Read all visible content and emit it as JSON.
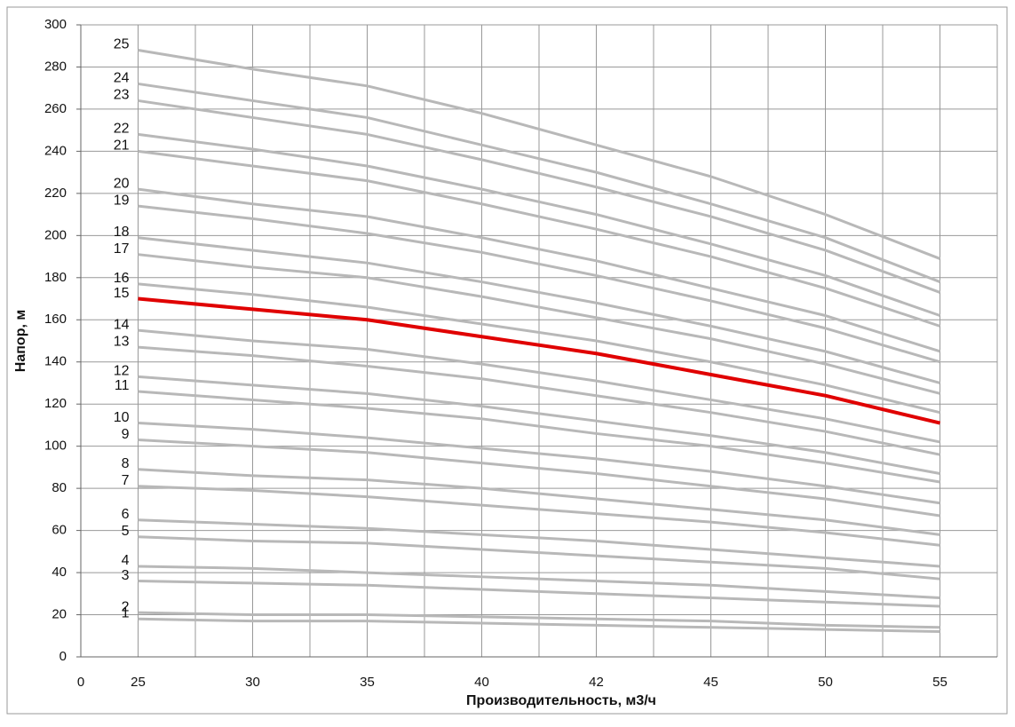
{
  "chart_data": {
    "type": "line",
    "x_label": "Производительность, м3/ч",
    "y_label": "Напор, м",
    "categories": [
      "0",
      "25",
      "30",
      "35",
      "40",
      "42",
      "45",
      "50",
      "55"
    ],
    "ylim": [
      0,
      300
    ],
    "yticks": [
      0,
      20,
      40,
      60,
      80,
      100,
      120,
      140,
      160,
      180,
      200,
      220,
      240,
      260,
      280,
      300
    ],
    "grid": true,
    "series": [
      {
        "name": "1",
        "color": "#b8b8b8",
        "values": [
          null,
          18,
          17,
          17,
          16,
          15,
          14,
          13,
          12
        ]
      },
      {
        "name": "2",
        "color": "#b8b8b8",
        "values": [
          null,
          21,
          20,
          20,
          19,
          18,
          17,
          15,
          14
        ]
      },
      {
        "name": "3",
        "color": "#b8b8b8",
        "values": [
          null,
          36,
          35,
          34,
          32,
          30,
          28,
          26,
          24
        ]
      },
      {
        "name": "4",
        "color": "#b8b8b8",
        "values": [
          null,
          43,
          42,
          40,
          38,
          36,
          34,
          31,
          28
        ]
      },
      {
        "name": "5",
        "color": "#b8b8b8",
        "values": [
          null,
          57,
          55,
          54,
          51,
          48,
          45,
          42,
          37
        ]
      },
      {
        "name": "6",
        "color": "#b8b8b8",
        "values": [
          null,
          65,
          63,
          61,
          58,
          55,
          51,
          47,
          43
        ]
      },
      {
        "name": "7",
        "color": "#b8b8b8",
        "values": [
          null,
          81,
          79,
          76,
          72,
          68,
          64,
          59,
          53
        ]
      },
      {
        "name": "8",
        "color": "#b8b8b8",
        "values": [
          null,
          89,
          86,
          84,
          80,
          75,
          70,
          65,
          58
        ]
      },
      {
        "name": "9",
        "color": "#b8b8b8",
        "values": [
          null,
          103,
          100,
          97,
          92,
          87,
          81,
          75,
          67
        ]
      },
      {
        "name": "10",
        "color": "#b8b8b8",
        "values": [
          null,
          111,
          108,
          104,
          99,
          94,
          88,
          81,
          73
        ]
      },
      {
        "name": "11",
        "color": "#b8b8b8",
        "values": [
          null,
          126,
          122,
          118,
          113,
          106,
          100,
          92,
          83
        ]
      },
      {
        "name": "12",
        "color": "#b8b8b8",
        "values": [
          null,
          133,
          129,
          125,
          119,
          112,
          105,
          97,
          87
        ]
      },
      {
        "name": "13",
        "color": "#b8b8b8",
        "values": [
          null,
          147,
          143,
          138,
          132,
          124,
          116,
          107,
          96
        ]
      },
      {
        "name": "14",
        "color": "#b8b8b8",
        "values": [
          null,
          155,
          150,
          146,
          139,
          131,
          122,
          113,
          102
        ]
      },
      {
        "name": "15",
        "color": "#e00000",
        "values": [
          null,
          170,
          165,
          160,
          152,
          144,
          134,
          124,
          111
        ]
      },
      {
        "name": "16",
        "color": "#b8b8b8",
        "values": [
          null,
          177,
          172,
          166,
          158,
          150,
          140,
          129,
          116
        ]
      },
      {
        "name": "17",
        "color": "#b8b8b8",
        "values": [
          null,
          191,
          185,
          180,
          171,
          161,
          151,
          139,
          125
        ]
      },
      {
        "name": "18",
        "color": "#b8b8b8",
        "values": [
          null,
          199,
          193,
          187,
          178,
          168,
          157,
          145,
          130
        ]
      },
      {
        "name": "19",
        "color": "#b8b8b8",
        "values": [
          null,
          214,
          208,
          201,
          192,
          181,
          169,
          156,
          140
        ]
      },
      {
        "name": "20",
        "color": "#b8b8b8",
        "values": [
          null,
          222,
          215,
          209,
          199,
          188,
          175,
          162,
          145
        ]
      },
      {
        "name": "21",
        "color": "#b8b8b8",
        "values": [
          null,
          240,
          233,
          226,
          215,
          203,
          190,
          175,
          157
        ]
      },
      {
        "name": "22",
        "color": "#b8b8b8",
        "values": [
          null,
          248,
          241,
          233,
          222,
          210,
          196,
          181,
          162
        ]
      },
      {
        "name": "23",
        "color": "#b8b8b8",
        "values": [
          null,
          264,
          256,
          248,
          236,
          223,
          209,
          193,
          173
        ]
      },
      {
        "name": "24",
        "color": "#b8b8b8",
        "values": [
          null,
          272,
          264,
          256,
          243,
          230,
          215,
          199,
          178
        ]
      },
      {
        "name": "25",
        "color": "#b8b8b8",
        "values": [
          null,
          288,
          279,
          271,
          258,
          243,
          228,
          210,
          189
        ]
      }
    ]
  }
}
